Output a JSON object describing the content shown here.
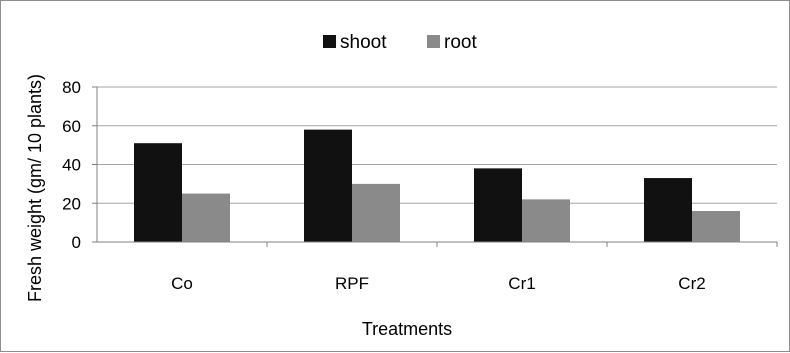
{
  "chart_data": {
    "type": "bar",
    "categories": [
      "Co",
      "RPF",
      "Cr1",
      "Cr2"
    ],
    "series": [
      {
        "name": "shoot",
        "values": [
          51,
          58,
          38,
          33
        ],
        "color": "#111111"
      },
      {
        "name": "root",
        "values": [
          25,
          30,
          22,
          16
        ],
        "color": "#8a8a8a"
      }
    ],
    "xlabel": "Treatments",
    "ylabel": "Fresh weight (gm/ 10 plants)",
    "ylim": [
      0,
      80
    ],
    "yticks": [
      "0",
      "20",
      "40",
      "60",
      "80"
    ],
    "grid": true,
    "legend_position": "top-center"
  }
}
